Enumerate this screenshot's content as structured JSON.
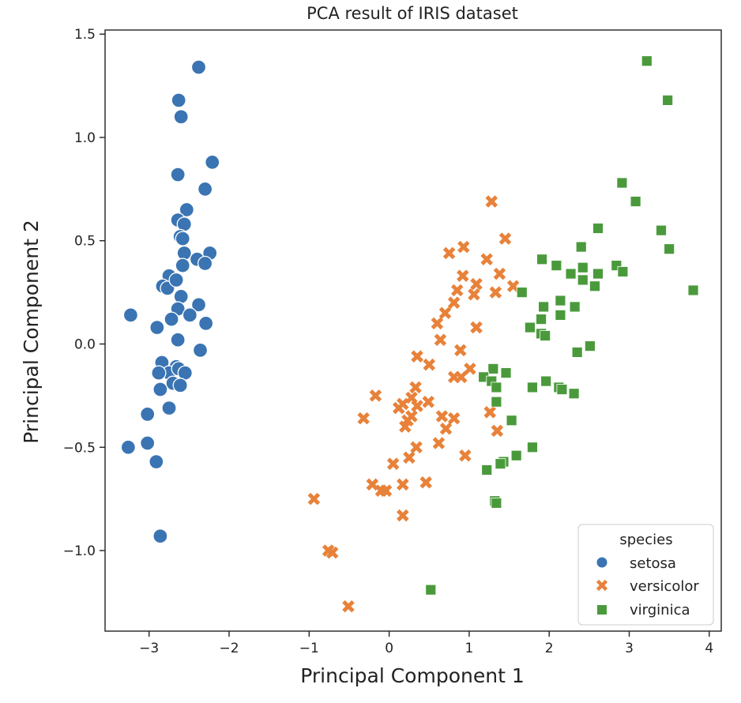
{
  "chart_data": {
    "type": "scatter",
    "title": "PCA result of IRIS dataset",
    "xlabel": "Principal Component 1",
    "ylabel": "Principal Component 2",
    "xlim": [
      -3.55,
      4.15
    ],
    "ylim": [
      -1.39,
      1.52
    ],
    "x_ticks": [
      -3,
      -2,
      -1,
      0,
      1,
      2,
      3,
      4
    ],
    "x_tick_labels": [
      "−3",
      "−2",
      "−1",
      "0",
      "1",
      "2",
      "3",
      "4"
    ],
    "y_ticks": [
      -1.0,
      -0.5,
      0.0,
      0.5,
      1.0,
      1.5
    ],
    "y_tick_labels": [
      "−1.0",
      "−0.5",
      "0.0",
      "0.5",
      "1.0",
      "1.5"
    ],
    "grid": false,
    "legend": {
      "title": "species",
      "placement": "lower-right"
    },
    "series": [
      {
        "name": "setosa",
        "marker": "circle",
        "color": "#3a74b2",
        "points": [
          [
            -2.38,
            1.34
          ],
          [
            -2.63,
            1.18
          ],
          [
            -2.6,
            1.1
          ],
          [
            -2.21,
            0.88
          ],
          [
            -2.64,
            0.82
          ],
          [
            -2.3,
            0.75
          ],
          [
            -2.53,
            0.65
          ],
          [
            -2.64,
            0.6
          ],
          [
            -2.56,
            0.58
          ],
          [
            -2.61,
            0.52
          ],
          [
            -2.58,
            0.51
          ],
          [
            -2.24,
            0.44
          ],
          [
            -2.56,
            0.44
          ],
          [
            -2.4,
            0.41
          ],
          [
            -2.3,
            0.39
          ],
          [
            -2.58,
            0.38
          ],
          [
            -2.75,
            0.33
          ],
          [
            -2.83,
            0.28
          ],
          [
            -2.77,
            0.27
          ],
          [
            -2.66,
            0.31
          ],
          [
            -2.6,
            0.23
          ],
          [
            -2.38,
            0.19
          ],
          [
            -2.64,
            0.17
          ],
          [
            -2.49,
            0.14
          ],
          [
            -3.23,
            0.14
          ],
          [
            -2.72,
            0.12
          ],
          [
            -2.29,
            0.1
          ],
          [
            -2.9,
            0.08
          ],
          [
            -2.64,
            0.02
          ],
          [
            -2.36,
            -0.03
          ],
          [
            -2.84,
            -0.09
          ],
          [
            -2.66,
            -0.11
          ],
          [
            -2.75,
            -0.14
          ],
          [
            -2.88,
            -0.14
          ],
          [
            -2.63,
            -0.12
          ],
          [
            -2.55,
            -0.14
          ],
          [
            -2.7,
            -0.19
          ],
          [
            -2.61,
            -0.2
          ],
          [
            -2.86,
            -0.22
          ],
          [
            -2.75,
            -0.31
          ],
          [
            -3.02,
            -0.34
          ],
          [
            -3.02,
            -0.48
          ],
          [
            -3.26,
            -0.5
          ],
          [
            -2.91,
            -0.57
          ],
          [
            -2.86,
            -0.93
          ]
        ]
      },
      {
        "name": "versicolor",
        "marker": "x",
        "color": "#e8823a",
        "points": [
          [
            1.28,
            0.69
          ],
          [
            1.45,
            0.51
          ],
          [
            0.93,
            0.47
          ],
          [
            0.75,
            0.44
          ],
          [
            1.22,
            0.41
          ],
          [
            1.38,
            0.34
          ],
          [
            0.92,
            0.33
          ],
          [
            1.09,
            0.29
          ],
          [
            1.55,
            0.28
          ],
          [
            0.85,
            0.26
          ],
          [
            1.33,
            0.25
          ],
          [
            1.06,
            0.24
          ],
          [
            0.81,
            0.2
          ],
          [
            0.7,
            0.15
          ],
          [
            0.6,
            0.1
          ],
          [
            1.09,
            0.08
          ],
          [
            0.64,
            0.02
          ],
          [
            0.89,
            -0.03
          ],
          [
            0.35,
            -0.06
          ],
          [
            0.5,
            -0.1
          ],
          [
            1.01,
            -0.12
          ],
          [
            0.81,
            -0.16
          ],
          [
            0.9,
            -0.16
          ],
          [
            0.33,
            -0.21
          ],
          [
            -0.17,
            -0.25
          ],
          [
            0.28,
            -0.26
          ],
          [
            0.49,
            -0.28
          ],
          [
            0.17,
            -0.29
          ],
          [
            0.35,
            -0.3
          ],
          [
            0.12,
            -0.31
          ],
          [
            1.26,
            -0.33
          ],
          [
            0.28,
            -0.35
          ],
          [
            0.23,
            -0.37
          ],
          [
            0.66,
            -0.35
          ],
          [
            0.81,
            -0.36
          ],
          [
            0.2,
            -0.4
          ],
          [
            -0.32,
            -0.36
          ],
          [
            1.35,
            -0.42
          ],
          [
            0.71,
            -0.41
          ],
          [
            0.62,
            -0.48
          ],
          [
            0.34,
            -0.5
          ],
          [
            0.25,
            -0.55
          ],
          [
            0.95,
            -0.54
          ],
          [
            0.05,
            -0.58
          ],
          [
            0.46,
            -0.67
          ],
          [
            -0.21,
            -0.68
          ],
          [
            0.17,
            -0.68
          ],
          [
            -0.04,
            -0.71
          ],
          [
            -0.1,
            -0.71
          ],
          [
            0.17,
            -0.83
          ],
          [
            -0.94,
            -0.75
          ],
          [
            -0.76,
            -1.0
          ],
          [
            -0.71,
            -1.01
          ],
          [
            -0.51,
            -1.27
          ]
        ]
      },
      {
        "name": "virginica",
        "marker": "square",
        "color": "#4a9a3c",
        "points": [
          [
            3.22,
            1.37
          ],
          [
            3.48,
            1.18
          ],
          [
            2.91,
            0.78
          ],
          [
            3.08,
            0.69
          ],
          [
            2.61,
            0.56
          ],
          [
            3.4,
            0.55
          ],
          [
            2.4,
            0.47
          ],
          [
            3.5,
            0.46
          ],
          [
            1.91,
            0.41
          ],
          [
            2.09,
            0.38
          ],
          [
            2.42,
            0.37
          ],
          [
            2.84,
            0.38
          ],
          [
            2.92,
            0.35
          ],
          [
            2.27,
            0.34
          ],
          [
            2.61,
            0.34
          ],
          [
            2.42,
            0.31
          ],
          [
            2.57,
            0.28
          ],
          [
            1.66,
            0.25
          ],
          [
            3.8,
            0.26
          ],
          [
            2.14,
            0.21
          ],
          [
            1.93,
            0.18
          ],
          [
            2.32,
            0.18
          ],
          [
            2.14,
            0.14
          ],
          [
            1.9,
            0.12
          ],
          [
            1.76,
            0.08
          ],
          [
            1.9,
            0.05
          ],
          [
            1.95,
            0.04
          ],
          [
            2.51,
            -0.01
          ],
          [
            2.35,
            -0.04
          ],
          [
            1.46,
            -0.14
          ],
          [
            1.3,
            -0.12
          ],
          [
            1.18,
            -0.16
          ],
          [
            1.28,
            -0.18
          ],
          [
            1.34,
            -0.21
          ],
          [
            1.96,
            -0.18
          ],
          [
            1.79,
            -0.21
          ],
          [
            2.12,
            -0.21
          ],
          [
            2.16,
            -0.22
          ],
          [
            2.31,
            -0.24
          ],
          [
            1.34,
            -0.28
          ],
          [
            1.53,
            -0.37
          ],
          [
            1.79,
            -0.5
          ],
          [
            1.59,
            -0.54
          ],
          [
            1.43,
            -0.57
          ],
          [
            1.39,
            -0.58
          ],
          [
            1.22,
            -0.61
          ],
          [
            1.32,
            -0.76
          ],
          [
            1.34,
            -0.77
          ],
          [
            0.52,
            -1.19
          ]
        ]
      }
    ]
  }
}
